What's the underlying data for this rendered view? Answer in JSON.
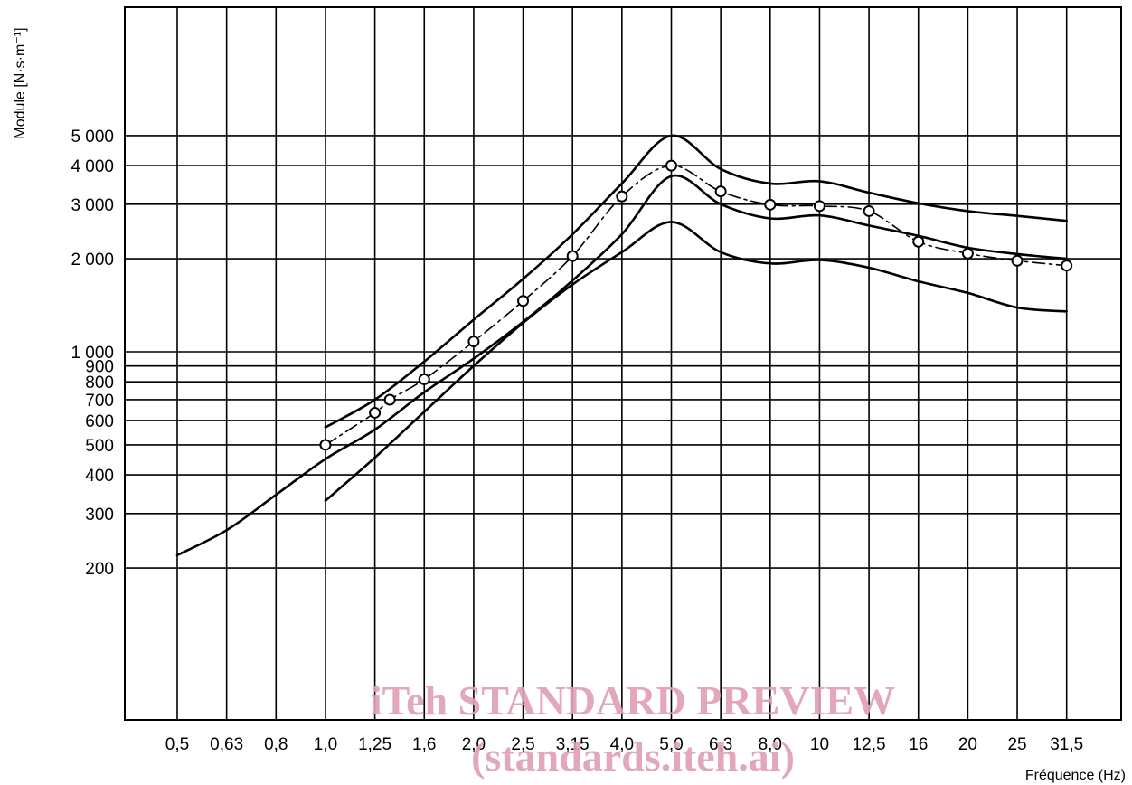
{
  "chart_data": {
    "type": "line",
    "title": "",
    "xlabel": "Fréquence (Hz)",
    "ylabel": "Module [N·s·m⁻¹]",
    "y_scale": "log",
    "ylim": [
      170,
      6500
    ],
    "grid": true,
    "x_categories": [
      "0,5",
      "0,63",
      "0,8",
      "1,0",
      "1,25",
      "1,6",
      "2,0",
      "2,5",
      "3,15",
      "4,0",
      "5,0",
      "6,3",
      "8,0",
      "10",
      "12,5",
      "16",
      "20",
      "25",
      "31,5"
    ],
    "y_tick_values": [
      200,
      300,
      400,
      500,
      600,
      700,
      800,
      900,
      1000,
      2000,
      3000,
      4000,
      5000
    ],
    "y_tick_labels": [
      "200",
      "300",
      "400",
      "500",
      "600",
      "700",
      "800",
      "900",
      "1 000",
      "2 000",
      "3 000",
      "4 000",
      "5 000"
    ],
    "series": [
      {
        "style": "solid",
        "x": [
          "0,5",
          "0,63",
          "0,8",
          "1,0",
          "1,25",
          "1,6",
          "2,0",
          "2,5",
          "3,15",
          "4,0",
          "5,0",
          "6,3",
          "8,0",
          "10",
          "12,5",
          "16",
          "20",
          "25",
          "31,5"
        ],
        "values": [
          220,
          265,
          345,
          450,
          560,
          740,
          950,
          1250,
          1700,
          2400,
          3700,
          3000,
          2700,
          2760,
          2560,
          2370,
          2170,
          2070,
          2000
        ]
      },
      {
        "style": "solid",
        "x": [
          "1,0",
          "1,25",
          "1,6",
          "2,0",
          "2,5",
          "3,15",
          "4,0",
          "5,0",
          "6,3",
          "8,0",
          "10",
          "12,5",
          "16",
          "20",
          "25",
          "31,5"
        ],
        "values": [
          570,
          700,
          930,
          1270,
          1720,
          2400,
          3500,
          5000,
          3900,
          3500,
          3560,
          3270,
          3020,
          2850,
          2750,
          2650
        ]
      },
      {
        "style": "solid",
        "x": [
          "1,0",
          "1,25",
          "1,6",
          "2,0",
          "2,5",
          "3,15",
          "4,0",
          "5,0",
          "6,3",
          "8,0",
          "10",
          "12,5",
          "16",
          "20",
          "25",
          "31,5"
        ],
        "values": [
          330,
          455,
          640,
          900,
          1240,
          1650,
          2100,
          2630,
          2100,
          1930,
          1980,
          1870,
          1690,
          1550,
          1390,
          1350
        ]
      },
      {
        "style": "dashed-markers",
        "x": [
          "1,0",
          "1,25",
          "1,35",
          "1,6",
          "2,0",
          "2,5",
          "3,15",
          "4,0",
          "5,0",
          "6,3",
          "8,0",
          "10",
          "12,5",
          "16",
          "20",
          "25",
          "31,5"
        ],
        "values": [
          500,
          635,
          700,
          815,
          1080,
          1460,
          2040,
          3180,
          4000,
          3300,
          2990,
          2960,
          2850,
          2270,
          2080,
          1970,
          1900
        ]
      }
    ],
    "watermark": [
      "iTeh STANDARD PREVIEW",
      "(standards.iteh.ai)"
    ]
  }
}
